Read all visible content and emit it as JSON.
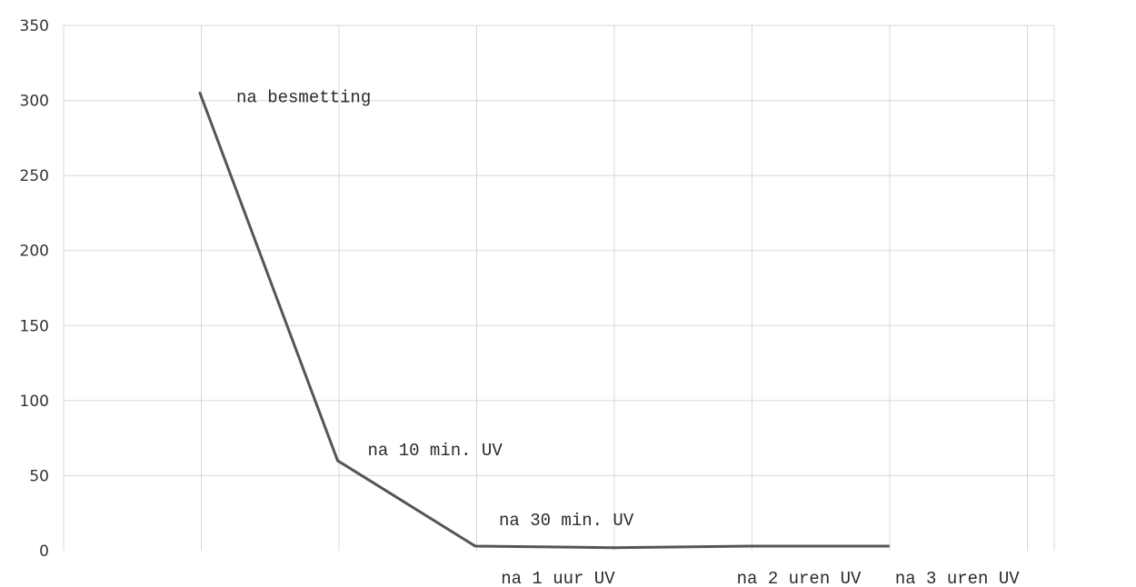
{
  "chart_data": {
    "type": "line",
    "title": "",
    "xlabel": "",
    "ylabel": "",
    "ylim": [
      0,
      350
    ],
    "yticks": [
      "0",
      "50",
      "100",
      "150",
      "200",
      "250",
      "300",
      "350"
    ],
    "grid": true,
    "x": [
      1,
      2,
      3,
      4,
      5,
      6
    ],
    "values": [
      305,
      60,
      3,
      2,
      3,
      3
    ],
    "annotations": [
      {
        "text": "na besmetting",
        "x": 1,
        "y": 305
      },
      {
        "text": "na 10 min. UV",
        "x": 2,
        "y": 60
      },
      {
        "text": "na 30 min. UV",
        "x": 3,
        "y": 3
      },
      {
        "text": "na 1 uur UV",
        "x": 3.6,
        "y": 0
      },
      {
        "text": "na 2 uren UV",
        "x": 5.35,
        "y": 0
      },
      {
        "text": "na 3 uren UV",
        "x": 6.5,
        "y": 0
      }
    ]
  }
}
